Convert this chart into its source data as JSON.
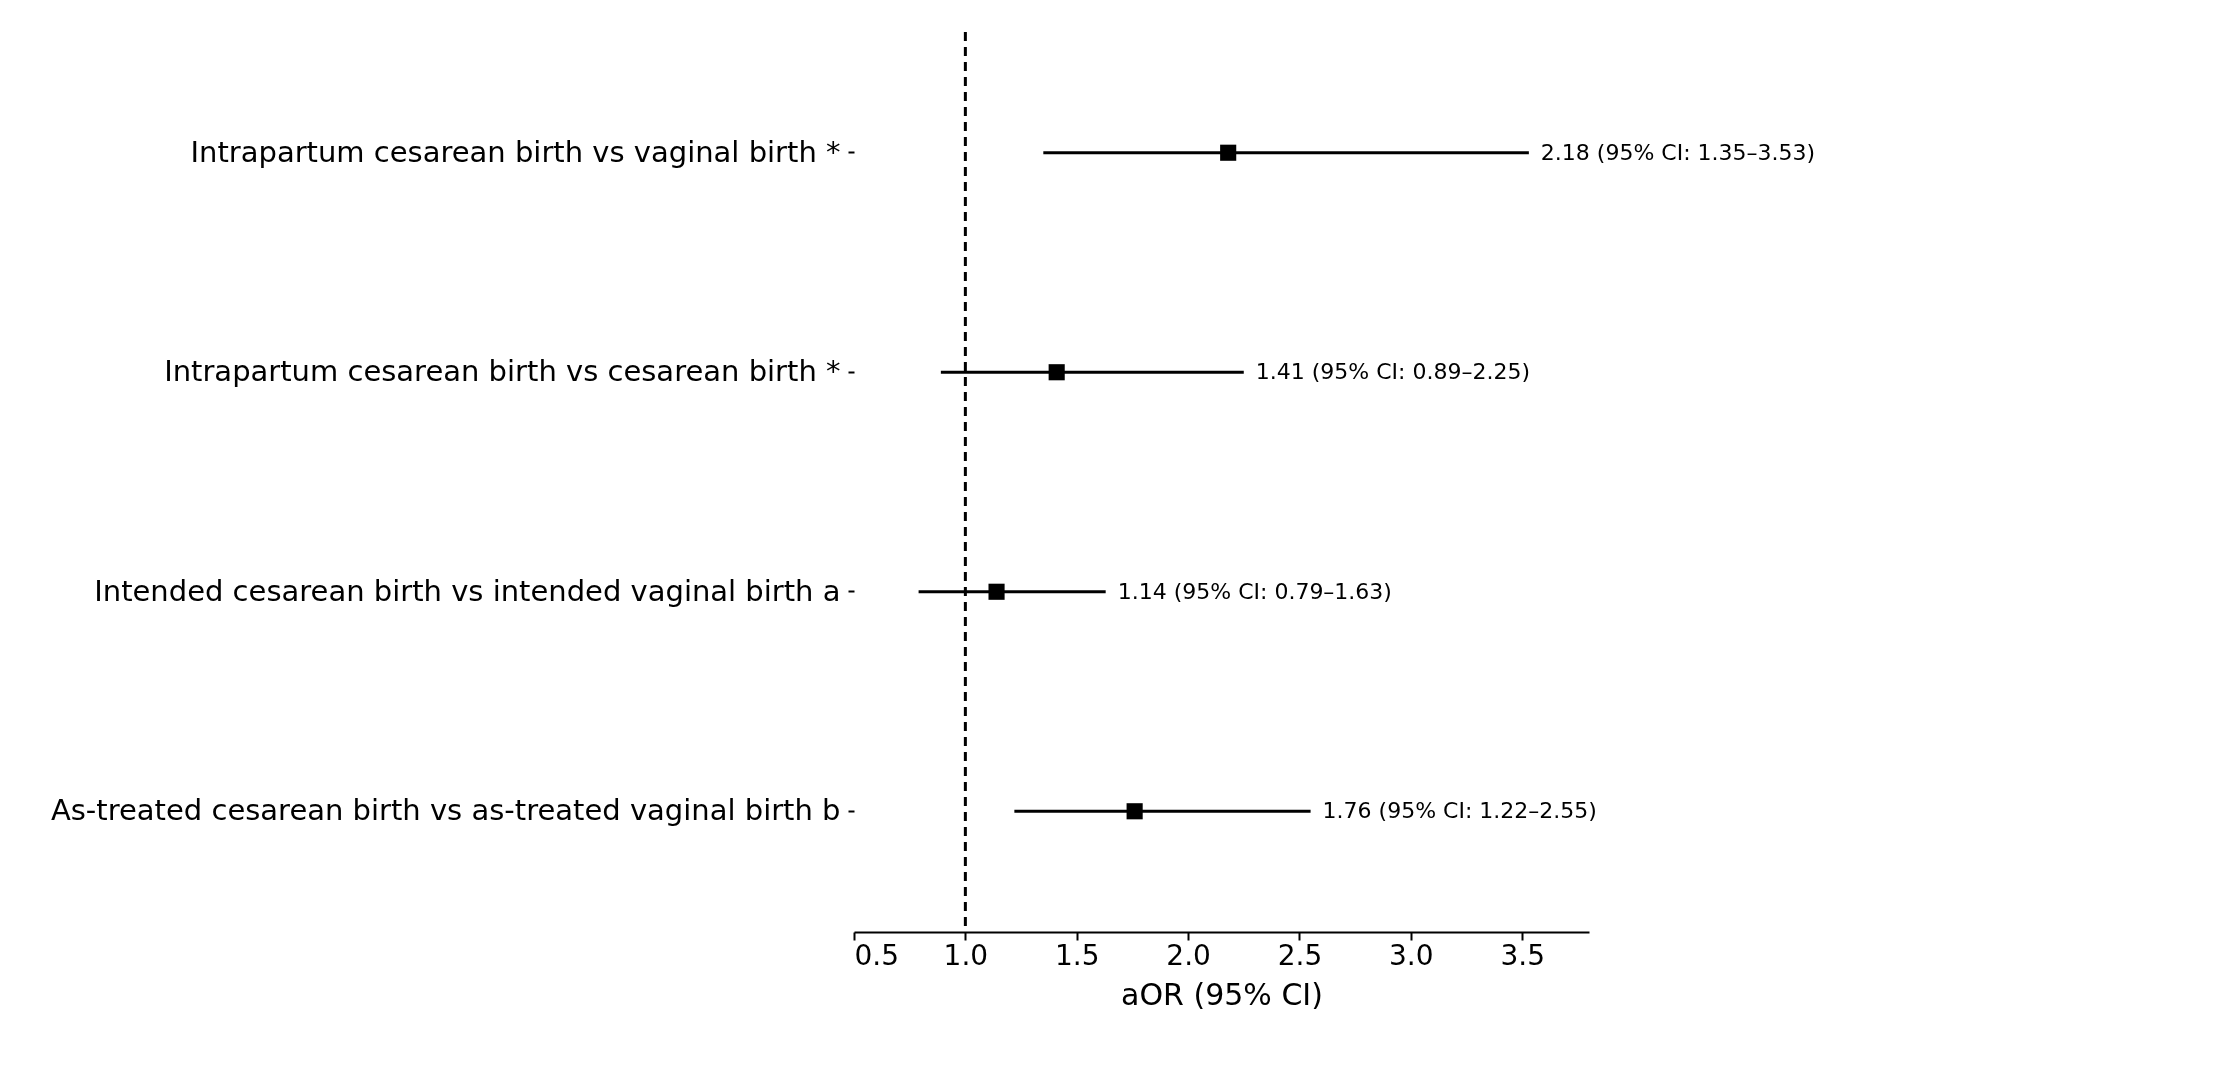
{
  "chart_data": {
    "type": "scatter",
    "orientation": "horizontal",
    "categories": [
      "Intrapartum cesarean birth vs vaginal birth *",
      "Intrapartum cesarean birth vs cesarean birth *",
      "Intended cesarean birth vs intended vaginal birth a",
      "As-treated cesarean birth vs as-treated vaginal birth b"
    ],
    "values": [
      2.18,
      1.41,
      1.14,
      1.76
    ],
    "errors": [
      [
        1.35,
        3.53
      ],
      [
        0.89,
        2.25
      ],
      [
        0.79,
        1.63
      ],
      [
        1.22,
        2.55
      ]
    ],
    "annotations": [
      {
        "text": "2.18 (95% CI: 1.35–3.53)",
        "x": 3.53,
        "y": "Intrapartum cesarean birth vs vaginal birth *"
      },
      {
        "text": "1.41 (95% CI: 0.89–2.25)",
        "x": 2.25,
        "y": "Intrapartum cesarean birth vs cesarean birth *"
      },
      {
        "text": "1.14 (95% CI: 0.79–1.63)",
        "x": 1.63,
        "y": "Intended cesarean birth vs intended vaginal birth a"
      },
      {
        "text": "1.76 (95% CI: 1.22–2.55)",
        "x": 2.55,
        "y": "As-treated cesarean birth vs as-treated vaginal birth b"
      }
    ],
    "color": "#000000",
    "marker": "square",
    "xlabel": "aOR (95% CI)",
    "xlim": [
      0.5,
      3.8
    ],
    "xticks": [
      0.5,
      {
        "value": 1,
        "label": "1.0"
      },
      1.5,
      {
        "value": 2,
        "label": "2.0"
      },
      2.5,
      {
        "value": 3,
        "label": "3.0"
      },
      3.5
    ],
    "ref_lines": [
      {
        "axis": "x",
        "value": 1,
        "line_style": "dashed",
        "color": "#000000"
      }
    ],
    "grid": false
  }
}
